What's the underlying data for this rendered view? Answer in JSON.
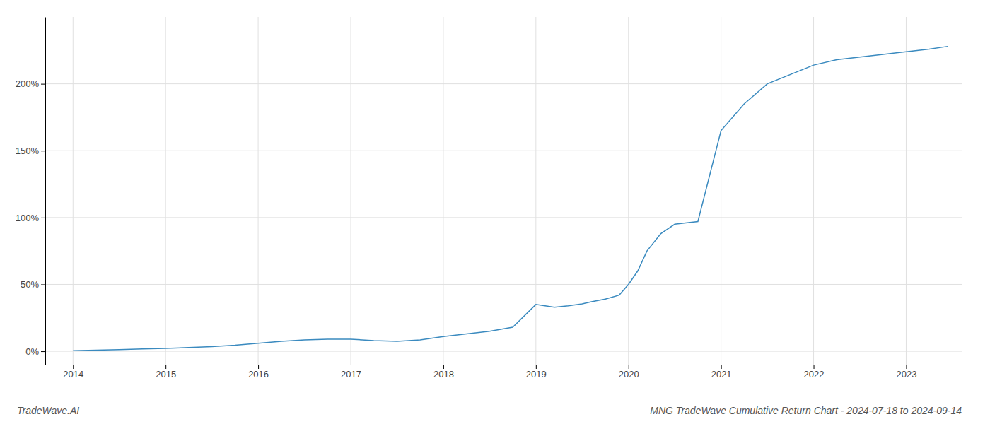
{
  "chart_data": {
    "type": "line",
    "title": "MNG TradeWave Cumulative Return Chart - 2024-07-18 to 2024-09-14",
    "annotations": [
      "TradeWave.AI"
    ],
    "x": [
      2014.0,
      2014.25,
      2014.5,
      2014.75,
      2015.0,
      2015.25,
      2015.5,
      2015.75,
      2016.0,
      2016.25,
      2016.5,
      2016.75,
      2017.0,
      2017.25,
      2017.5,
      2017.75,
      2018.0,
      2018.25,
      2018.5,
      2018.75,
      2019.0,
      2019.1,
      2019.2,
      2019.35,
      2019.5,
      2019.6,
      2019.75,
      2019.9,
      2020.0,
      2020.1,
      2020.2,
      2020.35,
      2020.5,
      2020.75,
      2021.0,
      2021.25,
      2021.5,
      2021.75,
      2022.0,
      2022.25,
      2022.5,
      2022.75,
      2023.0,
      2023.25,
      2023.45
    ],
    "values": [
      0.5,
      0.8,
      1.2,
      1.8,
      2.2,
      2.8,
      3.5,
      4.5,
      6.0,
      7.5,
      8.5,
      9.0,
      9.0,
      8.0,
      7.5,
      8.5,
      11.0,
      13.0,
      15.0,
      18.0,
      35.0,
      34.0,
      33.0,
      34.0,
      35.5,
      37.0,
      39.0,
      42.0,
      50.0,
      60.0,
      75.0,
      88.0,
      95.0,
      97.0,
      165.0,
      185.0,
      200.0,
      207.0,
      214.0,
      218.0,
      220.0,
      222.0,
      224.0,
      226.0,
      228.0
    ],
    "color": "#3a8abf",
    "xlim": [
      2013.7,
      2023.6
    ],
    "ylim": [
      -10,
      250
    ],
    "xticks": [
      2014,
      2015,
      2016,
      2017,
      2018,
      2019,
      2020,
      2021,
      2022,
      2023
    ],
    "yticks": [
      {
        "value": 0,
        "label": "0%"
      },
      {
        "value": 50,
        "label": "50%"
      },
      {
        "value": 100,
        "label": "100%"
      },
      {
        "value": 150,
        "label": "150%"
      },
      {
        "value": 200,
        "label": "200%"
      }
    ],
    "grid": true
  }
}
